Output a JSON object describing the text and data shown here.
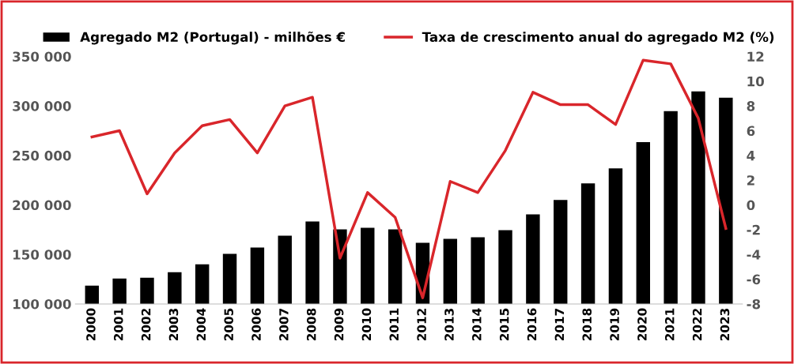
{
  "chart_data": {
    "type": "bar",
    "categories": [
      "2000",
      "2001",
      "2002",
      "2003",
      "2004",
      "2005",
      "2006",
      "2007",
      "2008",
      "2009",
      "2010",
      "2011",
      "2012",
      "2013",
      "2014",
      "2015",
      "2016",
      "2017",
      "2018",
      "2019",
      "2020",
      "2021",
      "2022",
      "2023"
    ],
    "series": [
      {
        "name": "Agregado M2 (Portugal) - milhões €",
        "color": "#000000",
        "values": [
          118500,
          125600,
          126400,
          132000,
          140000,
          150500,
          156900,
          168900,
          183300,
          175300,
          176900,
          175300,
          161700,
          165700,
          167300,
          174500,
          190500,
          205000,
          221800,
          237000,
          263400,
          294700,
          314700,
          308300
        ]
      },
      {
        "name": "Taxa de crescimento anual do agregado M2 (%)",
        "type": "line",
        "axis": "y2",
        "color": "#d9262b",
        "values": [
          5.5,
          6.0,
          0.9,
          4.2,
          6.4,
          6.9,
          4.2,
          8.0,
          8.7,
          -4.3,
          1.0,
          -1.0,
          -7.5,
          1.9,
          1.0,
          4.4,
          9.1,
          8.1,
          8.1,
          6.5,
          11.7,
          11.4,
          7.0,
          -1.9
        ]
      }
    ],
    "ylim": [
      100000,
      350000
    ],
    "yticks": [
      {
        "value": 100000,
        "label": "100 000"
      },
      {
        "value": 150000,
        "label": "150 000"
      },
      {
        "value": 200000,
        "label": "200 000"
      },
      {
        "value": 250000,
        "label": "250 000"
      },
      {
        "value": 300000,
        "label": "300 000"
      },
      {
        "value": 350000,
        "label": "350 000"
      }
    ],
    "y2lim": [
      -8,
      12
    ],
    "y2ticks": [
      {
        "value": -8,
        "label": "-8"
      },
      {
        "value": -6,
        "label": "-6"
      },
      {
        "value": -4,
        "label": "-4"
      },
      {
        "value": -2,
        "label": "-2"
      },
      0,
      2,
      4,
      6,
      8,
      10,
      12
    ],
    "grid": false,
    "legend": "top",
    "marker": "none",
    "line_style": "solid"
  }
}
